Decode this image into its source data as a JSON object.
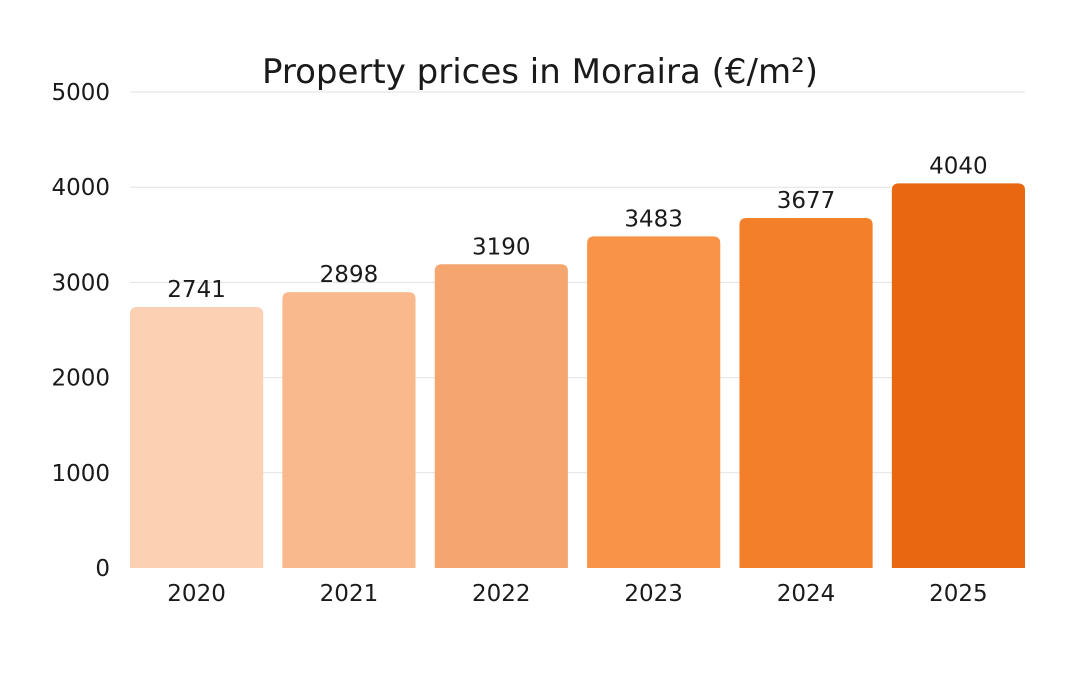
{
  "chart_data": {
    "type": "bar",
    "title": "Property prices in Moraira (€/m²)",
    "xlabel": "",
    "ylabel": "",
    "categories": [
      "2020",
      "2021",
      "2022",
      "2023",
      "2024",
      "2025"
    ],
    "values": [
      2741,
      2898,
      3190,
      3483,
      3677,
      4040
    ],
    "value_labels": [
      "2741",
      "2898",
      "3190",
      "3483",
      "3677",
      "4040"
    ],
    "ylim": [
      0,
      5000
    ],
    "yticks": [
      0,
      1000,
      2000,
      3000,
      4000,
      5000
    ],
    "ytick_labels": [
      "0",
      "1000",
      "2000",
      "3000",
      "4000",
      "5000"
    ],
    "bar_colors": [
      "#FCD0B3",
      "#FAB98D",
      "#F5A66E",
      "#F99348",
      "#F47F2A",
      "#EA6712"
    ],
    "grid": true,
    "legend": "none"
  }
}
